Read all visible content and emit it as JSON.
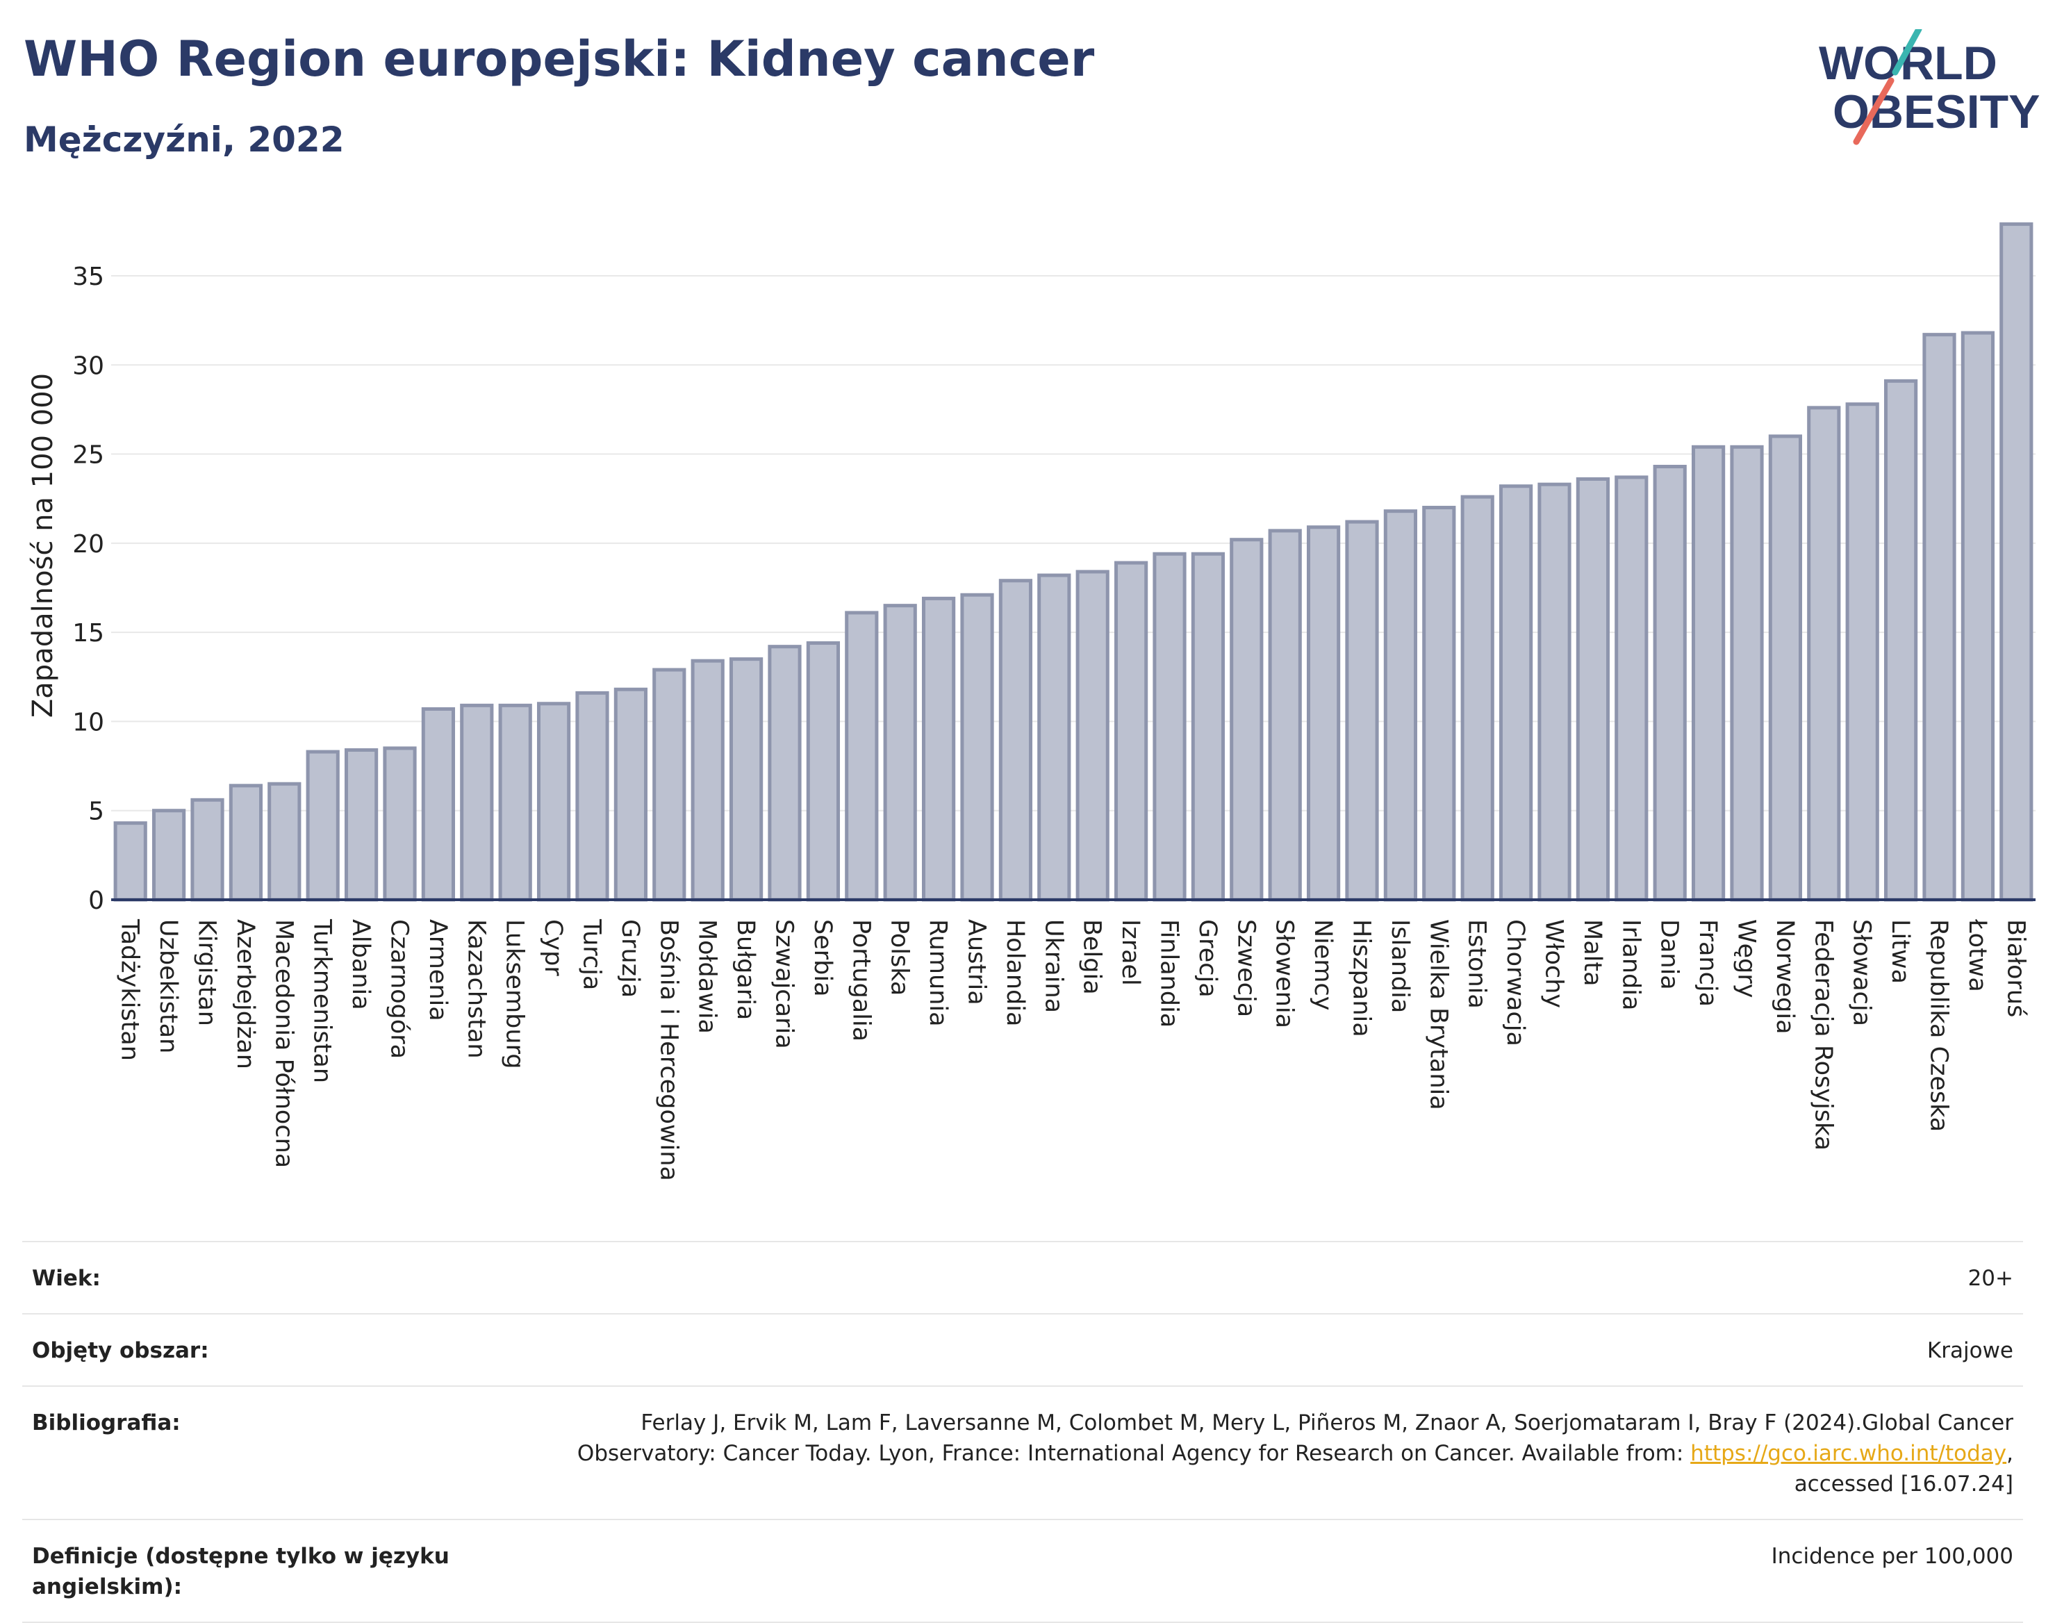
{
  "header": {
    "title": "WHO Region europejski: Kidney cancer",
    "subtitle": "Mężczyźni, 2022"
  },
  "logo": {
    "line1": "WORLD",
    "line2": "OBESITY",
    "slash_colors": [
      "#3ab5b0",
      "#e8695b"
    ]
  },
  "colors": {
    "bar_fill": "#bcc1d0",
    "bar_stroke": "#8e95ad",
    "axis": "#2b3a67",
    "grid": "#e8e8e8",
    "title": "#2b3a67",
    "link": "#e6a817"
  },
  "chart_data": {
    "type": "bar",
    "ylabel": "Zapadalność na 100 000",
    "ylim": [
      0,
      38
    ],
    "yticks": [
      0,
      5,
      10,
      15,
      20,
      25,
      30,
      35
    ],
    "grid": true,
    "categories": [
      "Tadżykistan",
      "Uzbekistan",
      "Kirgistan",
      "Azerbejdżan",
      "Macedonia Północna",
      "Turkmenistan",
      "Albania",
      "Czarnogóra",
      "Armenia",
      "Kazachstan",
      "Luksemburg",
      "Cypr",
      "Turcja",
      "Gruzja",
      "Bośnia i Hercegowina",
      "Mołdawia",
      "Bułgaria",
      "Szwajcaria",
      "Serbia",
      "Portugalia",
      "Polska",
      "Rumunia",
      "Austria",
      "Holandia",
      "Ukraina",
      "Belgia",
      "Izrael",
      "Finlandia",
      "Grecja",
      "Szwecja",
      "Słowenia",
      "Niemcy",
      "Hiszpania",
      "Islandia",
      "Wielka Brytania",
      "Estonia",
      "Chorwacja",
      "Włochy",
      "Malta",
      "Irlandia",
      "Dania",
      "Francja",
      "Węgry",
      "Norwegia",
      "Federacja Rosyjska",
      "Słowacja",
      "Litwa",
      "Republika Czeska",
      "Łotwa",
      "Białoruś"
    ],
    "values": [
      4.3,
      5.0,
      5.6,
      6.4,
      6.5,
      8.3,
      8.4,
      8.5,
      10.7,
      10.9,
      10.9,
      11.0,
      11.6,
      11.8,
      12.9,
      13.4,
      13.5,
      14.2,
      14.4,
      16.1,
      16.5,
      16.9,
      17.1,
      17.9,
      18.2,
      18.4,
      18.9,
      19.4,
      19.4,
      20.2,
      20.7,
      20.9,
      21.2,
      21.8,
      22.0,
      22.6,
      23.2,
      23.3,
      23.6,
      23.7,
      24.3,
      25.4,
      25.4,
      26.0,
      27.6,
      27.8,
      29.1,
      31.7,
      31.8,
      37.9
    ]
  },
  "meta": {
    "age_label": "Wiek:",
    "age_value": "20+",
    "coverage_label": "Objęty obszar:",
    "coverage_value": "Krajowe",
    "bib_label": "Bibliografia:",
    "bib_text1": "Ferlay J, Ervik M, Lam F, Laversanne M, Colombet M, Mery L, Piñeros M, Znaor A, Soerjomataram I, Bray F (2024).Global Cancer",
    "bib_text2": "Observatory: Cancer Today. Lyon, France: International Agency for Research on Cancer. Available from: ",
    "bib_link": "https://gco.iarc.who.int/today",
    "bib_text3": ",",
    "bib_text4": "accessed [16.07.24]",
    "def_label": "Definicje (dostępne tylko w języku angielskim):",
    "def_value": "Incidence per 100,000"
  }
}
